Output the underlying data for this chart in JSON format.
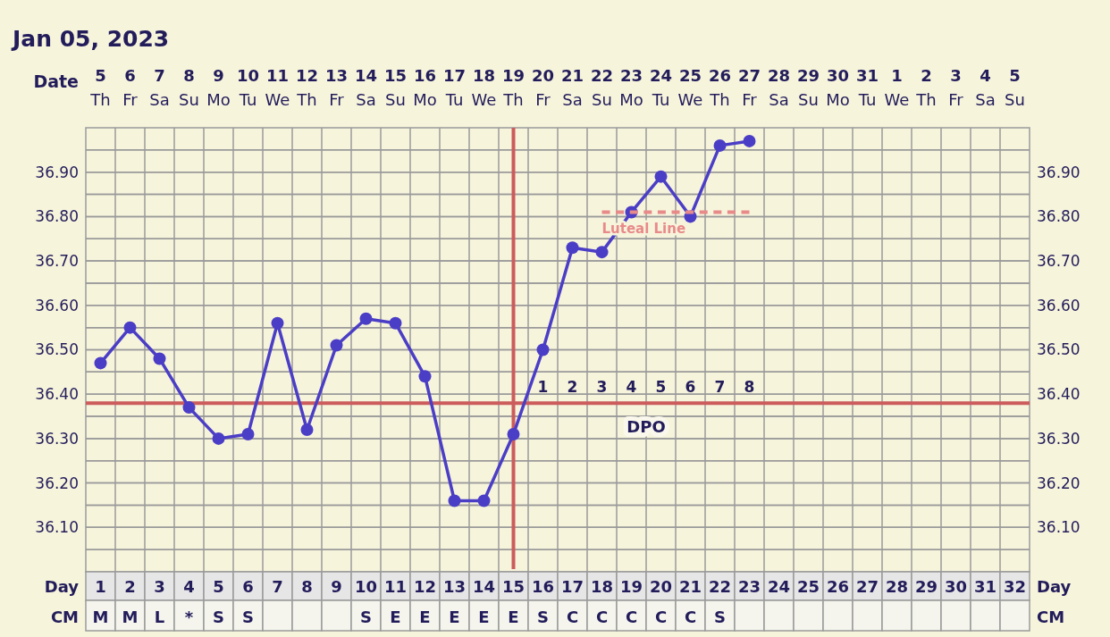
{
  "chart_data": {
    "type": "line",
    "title": "Jan 05, 2023",
    "xlim": [
      0.5,
      32.5
    ],
    "xlabel": "Day\nCM",
    "xticks": [
      {
        "value": 1,
        "label": "1\nM"
      },
      {
        "value": 2,
        "label": "2\nM"
      },
      {
        "value": 3,
        "label": "3\nL"
      },
      {
        "value": 4,
        "label": "4\n*"
      },
      {
        "value": 5,
        "label": "5\nS"
      },
      {
        "value": 6,
        "label": "6\nS"
      },
      7,
      8,
      9,
      {
        "value": 10,
        "label": "10\nS"
      },
      {
        "value": 11,
        "label": "11\nE"
      },
      {
        "value": 12,
        "label": "12\nE"
      },
      {
        "value": 13,
        "label": "13\nE"
      },
      {
        "value": 14,
        "label": "14\nE"
      },
      {
        "value": 15,
        "label": "15\nE"
      },
      {
        "value": 16,
        "label": "16\nS"
      },
      {
        "value": 17,
        "label": "17\nC"
      },
      {
        "value": 18,
        "label": "18\nC"
      },
      {
        "value": 19,
        "label": "19\nC"
      },
      {
        "value": 20,
        "label": "20\nC"
      },
      {
        "value": 21,
        "label": "21\nC"
      },
      {
        "value": 22,
        "label": "22\nS"
      },
      23,
      24,
      25,
      26,
      27,
      28,
      29,
      30,
      31,
      32
    ],
    "x2lim": [
      "2023-01-04T12:00",
      "2023-02-05T12:00"
    ],
    "x2label": "Date",
    "x2ticks": [
      {
        "value": "2023-01-05",
        "label": "5\nTh"
      },
      {
        "value": "2023-01-06",
        "label": "6\nFr"
      },
      {
        "value": "2023-01-07",
        "label": "7\nSa"
      },
      {
        "value": "2023-01-08",
        "label": "8\nSu"
      },
      {
        "value": "2023-01-09",
        "label": "9\nMo"
      },
      {
        "value": "2023-01-10",
        "label": "10\nTu"
      },
      {
        "value": "2023-01-11",
        "label": "11\nWe"
      },
      {
        "value": "2023-01-12",
        "label": "12\nTh"
      },
      {
        "value": "2023-01-13",
        "label": "13\nFr"
      },
      {
        "value": "2023-01-14",
        "label": "14\nSa"
      },
      {
        "value": "2023-01-15",
        "label": "15\nSu"
      },
      {
        "value": "2023-01-16",
        "label": "16\nMo"
      },
      {
        "value": "2023-01-17",
        "label": "17\nTu"
      },
      {
        "value": "2023-01-18",
        "label": "18\nWe"
      },
      {
        "value": "2023-01-19",
        "label": "19\nTh"
      },
      {
        "value": "2023-01-20",
        "label": "20\nFr"
      },
      {
        "value": "2023-01-21",
        "label": "21\nSa"
      },
      {
        "value": "2023-01-22",
        "label": "22\nSu"
      },
      {
        "value": "2023-01-23",
        "label": "23\nMo"
      },
      {
        "value": "2023-01-24",
        "label": "24\nTu"
      },
      {
        "value": "2023-01-25",
        "label": "25\nWe"
      },
      {
        "value": "2023-01-26",
        "label": "26\nTh"
      },
      {
        "value": "2023-01-27",
        "label": "27\nFr"
      },
      {
        "value": "2023-01-28",
        "label": "28\nSa"
      },
      {
        "value": "2023-01-29",
        "label": "29\nSu"
      },
      {
        "value": "2023-01-30",
        "label": "30\nMo"
      },
      {
        "value": "2023-01-31",
        "label": "31\nTu"
      },
      {
        "value": "2023-02-01",
        "label": "1\nWe"
      },
      {
        "value": "2023-02-02",
        "label": "2\nTh"
      },
      {
        "value": "2023-02-03",
        "label": "3\nFr"
      },
      {
        "value": "2023-02-04",
        "label": "4\nSa"
      },
      {
        "value": "2023-02-05",
        "label": "5\nSu"
      }
    ],
    "ylim": [
      36.0,
      37.0
    ],
    "yticks": [
      {
        "value": 36.05,
        "label": null
      },
      {
        "value": 36.1,
        "label": "36.10"
      },
      {
        "value": 36.15,
        "label": null
      },
      {
        "value": 36.2,
        "label": "36.20"
      },
      {
        "value": 36.25,
        "label": null
      },
      {
        "value": 36.3,
        "label": "36.30"
      },
      {
        "value": 36.35,
        "label": null
      },
      {
        "value": 36.4,
        "label": "36.40"
      },
      {
        "value": 36.45,
        "label": null
      },
      {
        "value": 36.5,
        "label": "36.50"
      },
      {
        "value": 36.55,
        "label": null
      },
      {
        "value": 36.6,
        "label": "36.60"
      },
      {
        "value": 36.65,
        "label": null
      },
      {
        "value": 36.7,
        "label": "36.70"
      },
      {
        "value": 36.75,
        "label": null
      },
      {
        "value": 36.8,
        "label": "36.80"
      },
      {
        "value": 36.85,
        "label": null
      },
      {
        "value": 36.9,
        "label": "36.90"
      },
      {
        "value": 36.95,
        "label": null
      }
    ],
    "y2lim": [
      36.0,
      37.0
    ],
    "y2ticks": [
      {
        "value": 36.05,
        "label": null
      },
      {
        "value": 36.1,
        "label": "36.10"
      },
      {
        "value": 36.15,
        "label": null
      },
      {
        "value": 36.2,
        "label": "36.20"
      },
      {
        "value": 36.25,
        "label": null
      },
      {
        "value": 36.3,
        "label": "36.30"
      },
      {
        "value": 36.35,
        "label": null
      },
      {
        "value": 36.4,
        "label": "36.40"
      },
      {
        "value": 36.45,
        "label": null
      },
      {
        "value": 36.5,
        "label": "36.50"
      },
      {
        "value": 36.55,
        "label": null
      },
      {
        "value": 36.6,
        "label": "36.60"
      },
      {
        "value": 36.65,
        "label": null
      },
      {
        "value": 36.7,
        "label": "36.70"
      },
      {
        "value": 36.75,
        "label": null
      },
      {
        "value": 36.8,
        "label": "36.80"
      },
      {
        "value": 36.85,
        "label": null
      },
      {
        "value": 36.9,
        "label": "36.90"
      },
      {
        "value": 36.95,
        "label": null
      }
    ],
    "grid": true,
    "marker": "circle",
    "series": [
      {
        "color": "#4b3ec6",
        "x": [
          1,
          2,
          3,
          4,
          5,
          6,
          7,
          8,
          9,
          10,
          11,
          12,
          13,
          14,
          15,
          16,
          17,
          18,
          19,
          20,
          21,
          22,
          23
        ],
        "values": [
          36.47,
          36.55,
          36.48,
          36.37,
          36.3,
          36.31,
          36.56,
          36.32,
          36.51,
          36.57,
          36.56,
          36.44,
          36.16,
          36.16,
          36.31,
          36.5,
          36.73,
          36.72,
          36.81,
          36.89,
          36.8,
          36.96,
          36.97
        ]
      },
      {
        "name": "Luteal Line",
        "type": "line",
        "color": "#e88a8a",
        "line_style": "dashed",
        "marker": "none",
        "x": [
          18,
          23
        ],
        "values": [
          36.81,
          36.81
        ]
      }
    ],
    "ref_lines": [
      {
        "axis": "y",
        "value": 36.38,
        "color": "#cc5c5c",
        "label": "DPO"
      },
      {
        "axis": "x",
        "value": 15,
        "color": "#cc5c5c"
      }
    ],
    "annotations": [
      {
        "text": "1",
        "x": 16,
        "y": 36.38
      },
      {
        "text": "2",
        "x": 17,
        "y": 36.38
      },
      {
        "text": "3",
        "x": 18,
        "y": 36.38
      },
      {
        "text": "4",
        "x": 19,
        "y": 36.38
      },
      {
        "text": "5",
        "x": 20,
        "y": 36.38
      },
      {
        "text": "6",
        "x": 21,
        "y": 36.38
      },
      {
        "text": "7",
        "x": 22,
        "y": 36.38
      },
      {
        "text": "8",
        "x": 23,
        "y": 36.38
      }
    ]
  }
}
